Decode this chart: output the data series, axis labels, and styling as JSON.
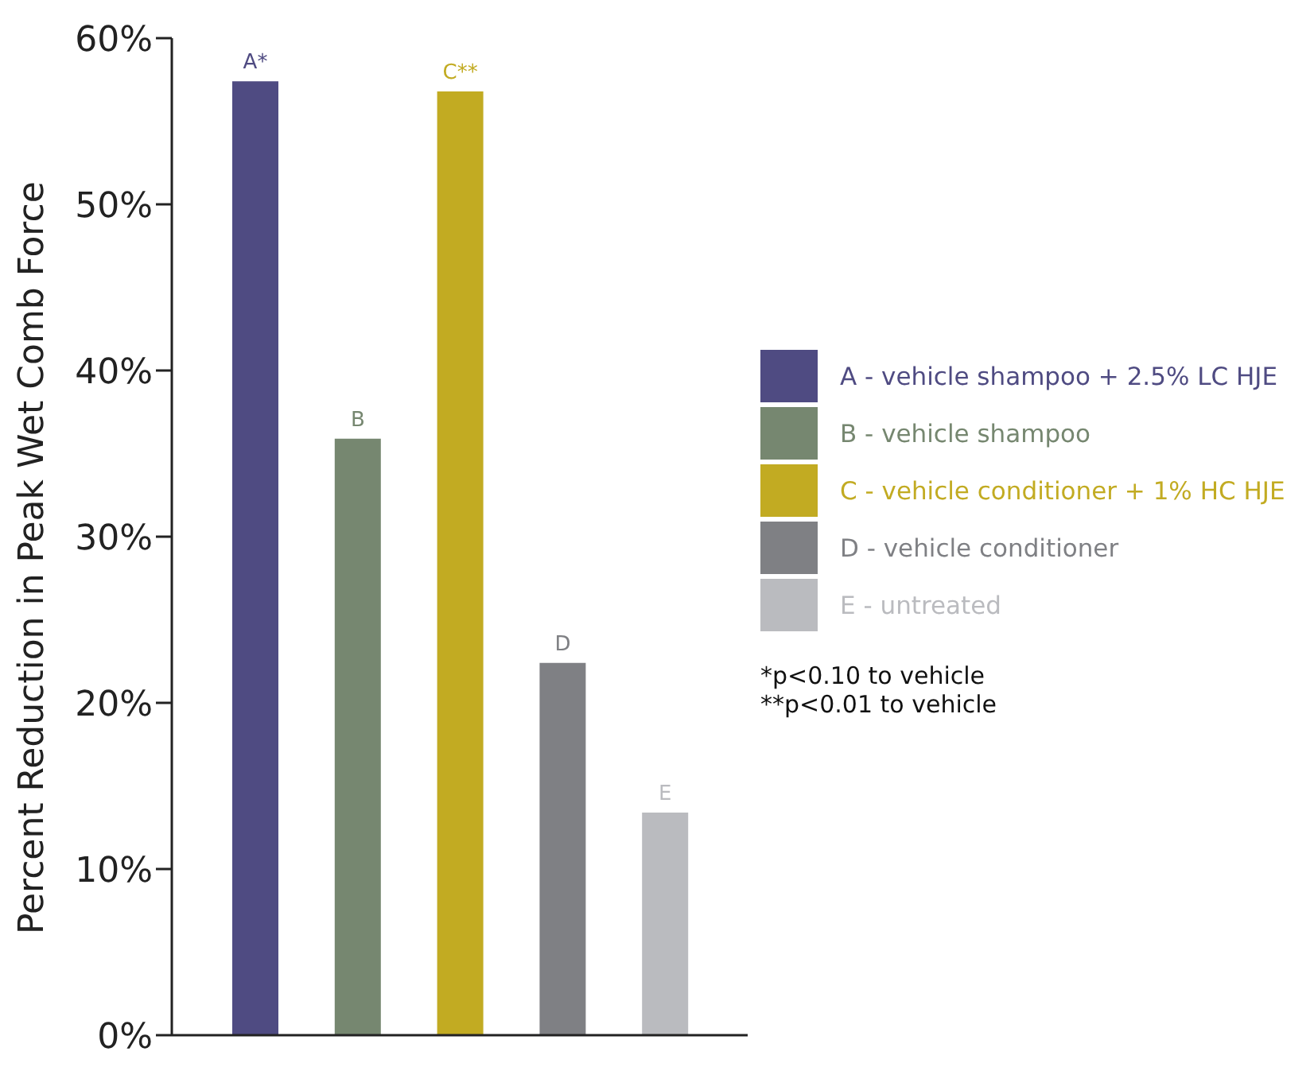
{
  "chart_data": {
    "type": "bar",
    "stacked": true,
    "ylabel": "Percent Reduction in Peak Wet Comb Force",
    "categories": [
      null,
      null,
      null,
      null,
      null
    ],
    "series": [
      {
        "name": "A - vehicle shampoo + 2.5% LC HJE",
        "color": "#4f4b82",
        "values": [
          57.4,
          null,
          null,
          null,
          null
        ],
        "value_labels": [
          "A*",
          null,
          null,
          null,
          null
        ]
      },
      {
        "name": "B - vehicle shampoo",
        "color": "#768770",
        "values": [
          null,
          35.9,
          null,
          null,
          null
        ],
        "value_labels": [
          null,
          "B",
          null,
          null,
          null
        ]
      },
      {
        "name": "C - vehicle conditioner + 1% HC HJE",
        "color": "#c2ab22",
        "values": [
          null,
          null,
          56.8,
          null,
          null
        ],
        "value_labels": [
          null,
          null,
          "C**",
          null,
          null
        ]
      },
      {
        "name": "D - vehicle conditioner",
        "color": "#7f8084",
        "values": [
          null,
          null,
          null,
          22.4,
          null
        ],
        "value_labels": [
          null,
          null,
          null,
          "D",
          null
        ]
      },
      {
        "name": "E - untreated",
        "color": "#babbbf",
        "values": [
          null,
          null,
          null,
          null,
          13.4
        ],
        "value_labels": [
          null,
          null,
          null,
          null,
          "E"
        ]
      }
    ],
    "ylim": [
      0,
      60
    ],
    "yticks": [
      {
        "value": 0,
        "label": "0%"
      },
      {
        "value": 10,
        "label": "10%"
      },
      {
        "value": 20,
        "label": "20%"
      },
      {
        "value": 30,
        "label": "30%"
      },
      {
        "value": 40,
        "label": "40%"
      },
      {
        "value": 50,
        "label": "50%"
      },
      {
        "value": 60,
        "label": "60%"
      }
    ],
    "legend": "right",
    "grid": false,
    "annotations": [
      "*p<0.10 to vehicle",
      "**p<0.01 to vehicle"
    ]
  }
}
